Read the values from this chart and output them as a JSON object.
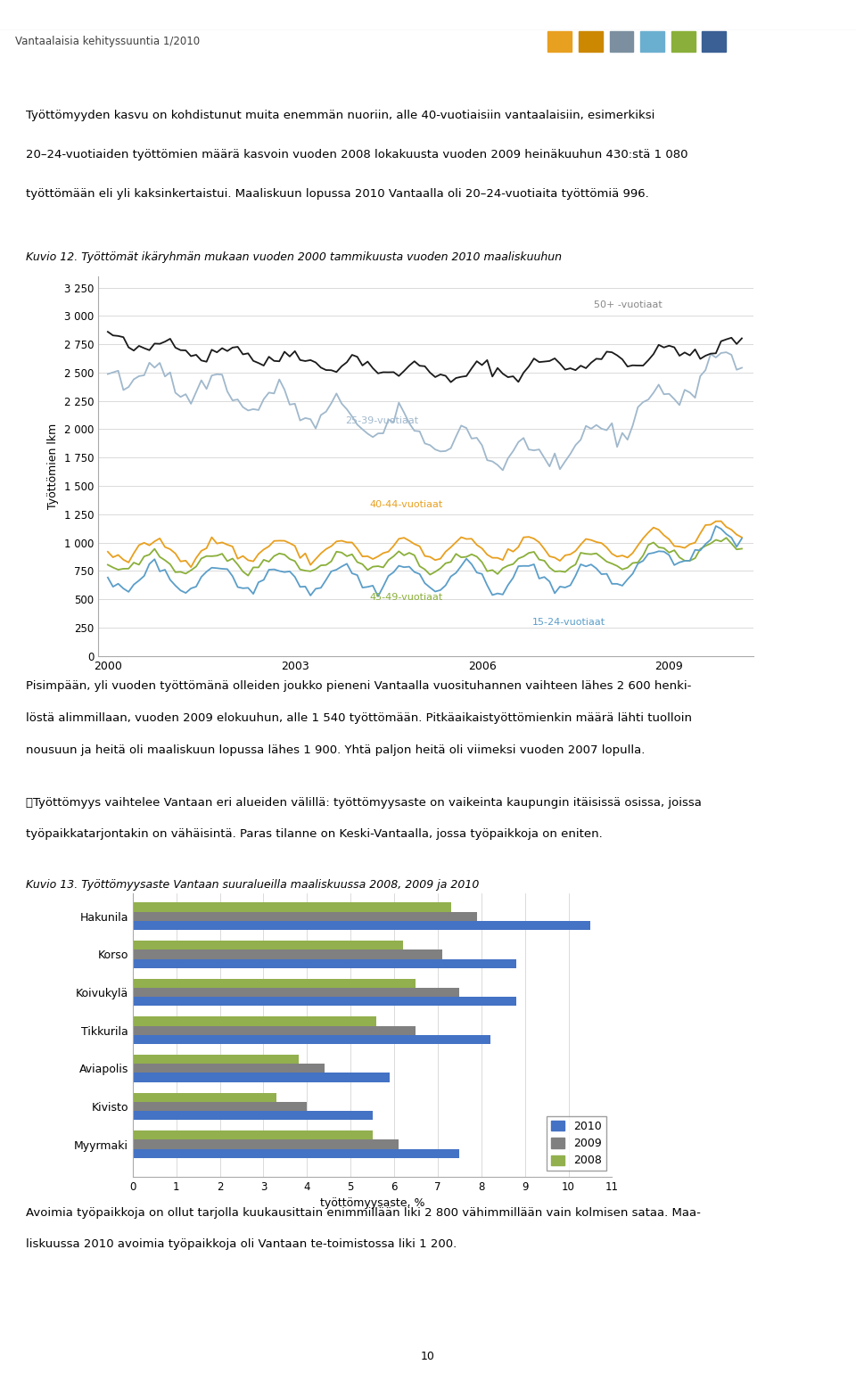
{
  "page_title": "Vantaalaisia kehityssuuntia 1/2010",
  "header_squares": [
    "#E8A020",
    "#CC8800",
    "#7B8FA0",
    "#6BAFD0",
    "#8AAF3A",
    "#3A6095"
  ],
  "paragraph1_lines": [
    "Työttömyyden kasvu on kohdistunut muita enemmän nuoriin, alle 40-vuotiaisiin vantaalaisiin, esimerkiksi",
    "20–24-vuotiaiden työttömien määrä kasvoin vuoden 2008 lokakuusta vuoden 2009 heinäkuuhun 430:stä 1 080",
    "työttömään eli yli kaksinkertaistui. Maaliskuun lopussa 2010 Vantaalla oli 20–24-vuotiaita työttömiä 996."
  ],
  "kuvio12_caption": "Kuvio 12. Työttömät ikäryhmän mukaan vuoden 2000 tammikuusta vuoden 2010 maaliskuuhun",
  "kuvio12_ylabel": "Työttömien lkm",
  "kuvio12_yticks": [
    0,
    250,
    500,
    750,
    1000,
    1250,
    1500,
    1750,
    2000,
    2250,
    2500,
    2750,
    3000,
    3250
  ],
  "kuvio12_xticks": [
    2000,
    2003,
    2006,
    2009
  ],
  "paragraph2_lines": [
    "Pisimpään, yli vuoden työttömänä olleiden joukko pieneni Vantaalla vuosituhannen vaihteen lähes 2 600 henki-",
    "löstä alimmillaan, vuoden 2009 elokuuhun, alle 1 540 työttömään. Pitkäaikaistyöttömienkin määrä lähti tuolloin",
    "nousuun ja heitä oli maaliskuun lopussa lähes 1 900. Yhtä paljon heitä oli viimeksi vuoden 2007 lopulla."
  ],
  "paragraph3_lines": [
    "\tTyöttömyys vaihtelee Vantaan eri alueiden välillä: työttömyysaste on vaikeinta kaupungin itäisissä osissa, joissa",
    "työpaikkatarjontakin on vähäisintä. Paras tilanne on Keski-Vantaalla, jossa työpaikkoja on eniten."
  ],
  "kuvio13_caption": "Kuvio 13. Työttömyysaste Vantaan suuralueilla maaliskuussa 2008, 2009 ja 2010",
  "kuvio13_xlabel": "työttömyysaste, %",
  "kuvio13_categories": [
    "Hakunila",
    "Korso",
    "Koivukylä",
    "Tikkurila",
    "Aviapolis",
    "Kivisto",
    "Myyrmaki"
  ],
  "kuvio13_2010": [
    10.5,
    8.8,
    8.8,
    8.2,
    5.9,
    5.5,
    7.5
  ],
  "kuvio13_2009": [
    7.9,
    7.1,
    7.5,
    6.5,
    4.4,
    4.0,
    6.1
  ],
  "kuvio13_2008": [
    7.3,
    6.2,
    6.5,
    5.6,
    3.8,
    3.3,
    5.5
  ],
  "color_2010": "#4472C4",
  "color_2009": "#808080",
  "color_2008": "#92B04E",
  "paragraph4_lines": [
    "Avoimia työpaikkoja on ollut tarjolla kuukausittain enimmillään liki 2 800 vähimmillään vain kolmisen sataa. Maa-",
    "liskuussa 2010 avoimia työpaikkoja oli Vantaan te-toimistossa liki 1 200."
  ],
  "footer_page": "10",
  "line_50plus_color": "#1A1A1A",
  "line_25_39_color": "#A0B8CC",
  "line_40_44_color": "#E8A020",
  "line_45_49_color": "#8AAF3A",
  "line_15_24_color": "#5B9EC9",
  "label_50plus": "50+ -vuotiaat",
  "label_25_39": "25-39-vuotiaat",
  "label_40_44": "40-44-vuotiaat",
  "label_45_49": "45-49-vuotiaat",
  "label_15_24": "15-24-vuotiaat"
}
